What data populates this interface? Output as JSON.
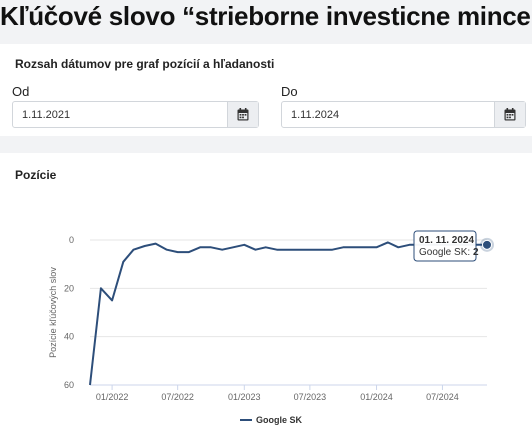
{
  "page": {
    "title": "Kľúčové slovo “strieborne investicne mince”"
  },
  "date_range": {
    "title": "Rozsah dátumov pre graf pozícií a hľadanosti",
    "from": {
      "label": "Od",
      "value": "1.11.2021",
      "icon": "calendar-icon"
    },
    "to": {
      "label": "Do",
      "value": "1.11.2024",
      "icon": "calendar-icon"
    }
  },
  "chart_section": {
    "title": "Pozície"
  },
  "tooltip": {
    "date": "01. 11. 2024",
    "series": "Google SK",
    "value": "2"
  },
  "chart_data": {
    "type": "line",
    "ylabel": "Pozície kľúčových slov",
    "y_reversed": true,
    "ylim": [
      0,
      60
    ],
    "yticks": [
      0,
      20,
      40,
      60
    ],
    "xlim": [
      "2021-11-01",
      "2024-11-01"
    ],
    "xticks": [
      "2022-01-01",
      "2022-07-01",
      "2023-01-01",
      "2023-07-01",
      "2024-01-01",
      "2024-07-01"
    ],
    "xtick_labels": [
      "01/2022",
      "07/2022",
      "01/2023",
      "07/2023",
      "01/2024",
      "07/2024"
    ],
    "legend": "bottom",
    "grid": {
      "y": true,
      "x": false
    },
    "series": [
      {
        "name": "Google SK",
        "color": "#2d4e7a",
        "x": [
          "2021-11-01",
          "2021-12-01",
          "2022-01-01",
          "2022-02-01",
          "2022-03-01",
          "2022-04-01",
          "2022-05-01",
          "2022-06-01",
          "2022-07-01",
          "2022-08-01",
          "2022-09-01",
          "2022-10-01",
          "2022-11-01",
          "2022-12-01",
          "2023-01-01",
          "2023-02-01",
          "2023-03-01",
          "2023-04-01",
          "2023-05-01",
          "2023-06-01",
          "2023-07-01",
          "2023-08-01",
          "2023-09-01",
          "2023-10-01",
          "2023-11-01",
          "2023-12-01",
          "2024-01-01",
          "2024-02-01",
          "2024-03-01",
          "2024-04-01",
          "2024-05-01",
          "2024-06-01",
          "2024-07-01",
          "2024-08-01",
          "2024-09-01",
          "2024-10-01",
          "2024-11-01"
        ],
        "values": [
          60,
          20,
          25,
          9,
          4,
          2.5,
          1.5,
          4,
          5,
          5,
          3,
          3,
          4,
          3,
          2,
          4,
          3,
          4,
          4,
          4,
          4,
          4,
          4,
          3,
          3,
          3,
          3,
          1,
          3,
          2,
          2,
          2,
          2,
          2,
          2,
          2,
          2
        ]
      }
    ]
  }
}
